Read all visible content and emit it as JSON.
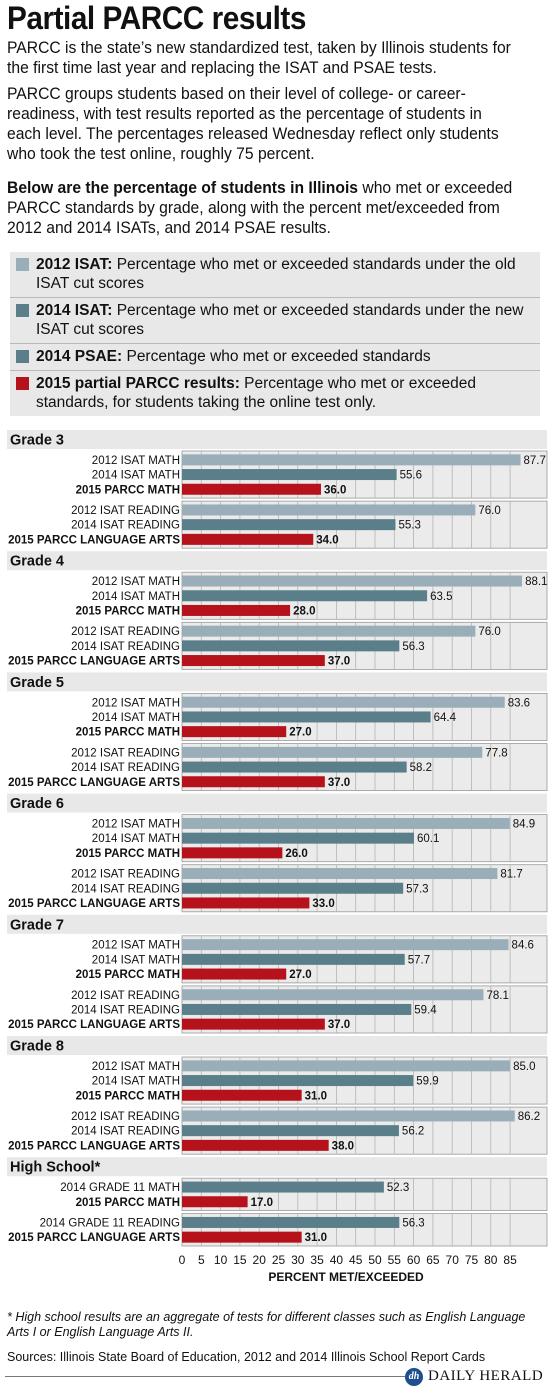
{
  "title": "Partial PARCC results",
  "intro": [
    "PARCC is the state’s new standardized test, taken by Illinois students for the first time last year and replacing the ISAT and PSAE tests.",
    "PARCC groups students based on their level of college- or career-readiness, with test results reported as the percentage of students in each level.  The percentages released Wednesday reflect only students who took the test online, roughly 75 percent."
  ],
  "lead_bold": "Below are the percentage of students in Illinois",
  "lead_rest": " who met or exceeded PARCC standards by grade, along with the percent met/exceeded from 2012 and 2014 ISATs, and 2014 PSAE results.",
  "legend": [
    {
      "key": "isat2012",
      "bold": "2012 ISAT:",
      "text": " Percentage who met or exceeded standards under the old ISAT cut scores",
      "color": "#9aaeb9"
    },
    {
      "key": "isat2014",
      "bold": "2014 ISAT:",
      "text": " Percentage who met or exceeded standards under the new ISAT cut scores",
      "color": "#5a7f8a"
    },
    {
      "key": "psae2014",
      "bold": "2014 PSAE:",
      "text": " Percentage who met or exceeded standards",
      "color": "#5a7f8a"
    },
    {
      "key": "parcc2015",
      "bold": "2015 partial PARCC results:",
      "text": " Percentage who met or exceeded standards, for students taking the online test only.",
      "color": "#b5121b"
    }
  ],
  "chart_data": {
    "type": "bar",
    "orientation": "horizontal",
    "xlabel": "PERCENT MET/EXCEEDED",
    "xlim": [
      0,
      85
    ],
    "xticks": [
      0,
      5,
      10,
      15,
      20,
      25,
      30,
      35,
      40,
      45,
      50,
      55,
      60,
      65,
      70,
      75,
      80,
      85
    ],
    "grid": true,
    "colors": {
      "isat2012": "#9aaeb9",
      "isat2014": "#5a7f8a",
      "psae2014": "#5a7f8a",
      "parcc2015": "#b5121b"
    },
    "groups": [
      {
        "label": "Grade 3",
        "subgroups": [
          [
            {
              "label": "2012 ISAT MATH",
              "value": 87.7,
              "series": "isat2012",
              "bold": false
            },
            {
              "label": "2014 ISAT MATH",
              "value": 55.6,
              "series": "isat2014",
              "bold": false
            },
            {
              "label": "2015 PARCC MATH",
              "value": 36.0,
              "series": "parcc2015",
              "bold": true
            }
          ],
          [
            {
              "label": "2012 ISAT READING",
              "value": 76.0,
              "series": "isat2012",
              "bold": false
            },
            {
              "label": "2014 ISAT READING",
              "value": 55.3,
              "series": "isat2014",
              "bold": false
            },
            {
              "label": "2015 PARCC LANGUAGE ARTS",
              "value": 34.0,
              "series": "parcc2015",
              "bold": true
            }
          ]
        ]
      },
      {
        "label": "Grade 4",
        "subgroups": [
          [
            {
              "label": "2012 ISAT MATH",
              "value": 88.1,
              "series": "isat2012",
              "bold": false
            },
            {
              "label": "2014 ISAT MATH",
              "value": 63.5,
              "series": "isat2014",
              "bold": false
            },
            {
              "label": "2015 PARCC MATH",
              "value": 28.0,
              "series": "parcc2015",
              "bold": true
            }
          ],
          [
            {
              "label": "2012 ISAT READING",
              "value": 76.0,
              "series": "isat2012",
              "bold": false
            },
            {
              "label": "2014 ISAT READING",
              "value": 56.3,
              "series": "isat2014",
              "bold": false
            },
            {
              "label": "2015 PARCC LANGUAGE ARTS",
              "value": 37.0,
              "series": "parcc2015",
              "bold": true
            }
          ]
        ]
      },
      {
        "label": "Grade 5",
        "subgroups": [
          [
            {
              "label": "2012 ISAT MATH",
              "value": 83.6,
              "series": "isat2012",
              "bold": false
            },
            {
              "label": "2014 ISAT MATH",
              "value": 64.4,
              "series": "isat2014",
              "bold": false
            },
            {
              "label": "2015 PARCC MATH",
              "value": 27.0,
              "series": "parcc2015",
              "bold": true
            }
          ],
          [
            {
              "label": "2012 ISAT READING",
              "value": 77.8,
              "series": "isat2012",
              "bold": false
            },
            {
              "label": "2014 ISAT READING",
              "value": 58.2,
              "series": "isat2014",
              "bold": false
            },
            {
              "label": "2015 PARCC LANGUAGE ARTS",
              "value": 37.0,
              "series": "parcc2015",
              "bold": true
            }
          ]
        ]
      },
      {
        "label": "Grade 6",
        "subgroups": [
          [
            {
              "label": "2012 ISAT MATH",
              "value": 84.9,
              "series": "isat2012",
              "bold": false
            },
            {
              "label": "2014 ISAT MATH",
              "value": 60.1,
              "series": "isat2014",
              "bold": false
            },
            {
              "label": "2015 PARCC MATH",
              "value": 26.0,
              "series": "parcc2015",
              "bold": true
            }
          ],
          [
            {
              "label": "2012 ISAT READING",
              "value": 81.7,
              "series": "isat2012",
              "bold": false
            },
            {
              "label": "2014 ISAT READING",
              "value": 57.3,
              "series": "isat2014",
              "bold": false
            },
            {
              "label": "2015 PARCC LANGUAGE ARTS",
              "value": 33.0,
              "series": "parcc2015",
              "bold": true
            }
          ]
        ]
      },
      {
        "label": "Grade 7",
        "subgroups": [
          [
            {
              "label": "2012 ISAT MATH",
              "value": 84.6,
              "series": "isat2012",
              "bold": false
            },
            {
              "label": "2014 ISAT MATH",
              "value": 57.7,
              "series": "isat2014",
              "bold": false
            },
            {
              "label": "2015 PARCC MATH",
              "value": 27.0,
              "series": "parcc2015",
              "bold": true
            }
          ],
          [
            {
              "label": "2012 ISAT READING",
              "value": 78.1,
              "series": "isat2012",
              "bold": false
            },
            {
              "label": "2014 ISAT READING",
              "value": 59.4,
              "series": "isat2014",
              "bold": false
            },
            {
              "label": "2015 PARCC LANGUAGE ARTS",
              "value": 37.0,
              "series": "parcc2015",
              "bold": true
            }
          ]
        ]
      },
      {
        "label": "Grade 8",
        "subgroups": [
          [
            {
              "label": "2012 ISAT MATH",
              "value": 85.0,
              "series": "isat2012",
              "bold": false
            },
            {
              "label": "2014 ISAT MATH",
              "value": 59.9,
              "series": "isat2014",
              "bold": false
            },
            {
              "label": "2015 PARCC MATH",
              "value": 31.0,
              "series": "parcc2015",
              "bold": true
            }
          ],
          [
            {
              "label": "2012 ISAT READING",
              "value": 86.2,
              "series": "isat2012",
              "bold": false
            },
            {
              "label": "2014 ISAT READING",
              "value": 56.2,
              "series": "isat2014",
              "bold": false
            },
            {
              "label": "2015 PARCC LANGUAGE ARTS",
              "value": 38.0,
              "series": "parcc2015",
              "bold": true
            }
          ]
        ]
      },
      {
        "label": "High School*",
        "subgroups": [
          [
            {
              "label": "2014 GRADE 11 MATH",
              "value": 52.3,
              "series": "psae2014",
              "bold": false
            },
            {
              "label": "2015 PARCC MATH",
              "value": 17.0,
              "series": "parcc2015",
              "bold": true
            }
          ],
          [
            {
              "label": "2014 GRADE 11 READING",
              "value": 56.3,
              "series": "psae2014",
              "bold": false
            },
            {
              "label": "2015 PARCC LANGUAGE ARTS",
              "value": 31.0,
              "series": "parcc2015",
              "bold": true
            }
          ]
        ]
      }
    ]
  },
  "footnote": "* High school results are an aggregate of tests for different classes such as English Language Arts I or English Language Arts II.",
  "sources": "Sources: Illinois State Board of Education, 2012 and 2014 Illinois School Report Cards",
  "logo": {
    "badge": "dh",
    "name": "DAILY HERALD"
  }
}
